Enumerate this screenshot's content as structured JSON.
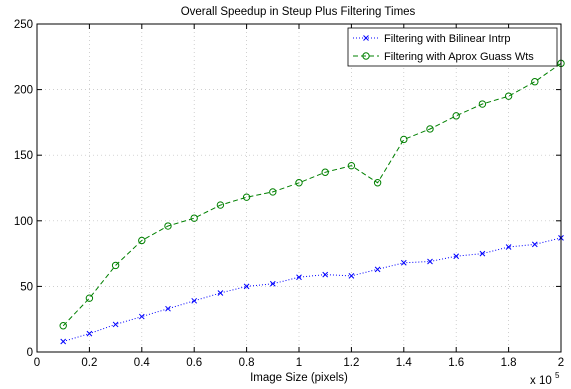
{
  "chart_data": {
    "type": "line",
    "title": "Overall Speedup in Steup Plus Filtering Times",
    "xlabel": "Image Size (pixels)",
    "ylabel": "",
    "x_multiplier_label": "x 10",
    "x_multiplier_exponent": "5",
    "xlim": [
      0,
      2
    ],
    "ylim": [
      0,
      250
    ],
    "xticks": [
      0,
      0.2,
      0.4,
      0.6,
      0.8,
      1,
      1.2,
      1.4,
      1.6,
      1.8,
      2
    ],
    "xtick_labels": [
      "0",
      "0.2",
      "0.4",
      "0.6",
      "0.8",
      "1",
      "1.2",
      "1.4",
      "1.6",
      "1.8",
      "2"
    ],
    "yticks": [
      0,
      50,
      100,
      150,
      200,
      250
    ],
    "ytick_labels": [
      "0",
      "50",
      "100",
      "150",
      "200",
      "250"
    ],
    "grid": true,
    "legend_position": "top-right",
    "x": [
      0.1,
      0.2,
      0.3,
      0.4,
      0.5,
      0.6,
      0.7,
      0.8,
      0.9,
      1.0,
      1.1,
      1.2,
      1.3,
      1.4,
      1.5,
      1.6,
      1.7,
      1.8,
      1.9,
      2.0
    ],
    "series": [
      {
        "name": "Filtering with Bilinear Intrp",
        "color": "#0000ff",
        "line_style": "dotted",
        "marker": "x",
        "values": [
          8,
          14,
          21,
          27,
          33,
          39,
          45,
          50,
          52,
          57,
          59,
          58,
          63,
          68,
          69,
          73,
          75,
          80,
          82,
          87
        ]
      },
      {
        "name": "Filtering with Aprox Guass Wts",
        "color": "#008000",
        "line_style": "dashed",
        "marker": "circle",
        "values": [
          20,
          41,
          66,
          85,
          96,
          102,
          112,
          118,
          122,
          129,
          137,
          142,
          129,
          162,
          170,
          180,
          189,
          195,
          206,
          220
        ]
      }
    ]
  }
}
